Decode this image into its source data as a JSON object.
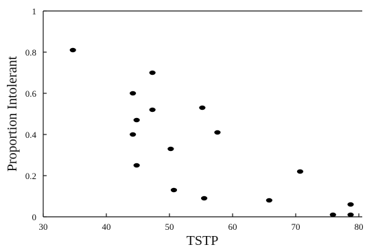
{
  "chart_data": {
    "type": "scatter",
    "title": "",
    "xlabel": "TSTP",
    "ylabel": "Proportion Intolerant",
    "xlim": [
      30,
      80
    ],
    "ylim": [
      0,
      1
    ],
    "x_ticks": [
      "30",
      "40",
      "50",
      "60",
      "70",
      "80"
    ],
    "y_ticks": [
      "0",
      "0.2",
      "0.4",
      "0.6",
      "0.8",
      "1"
    ],
    "grid": false,
    "series": [
      {
        "points": [
          {
            "x": 34.7,
            "y": 0.81
          },
          {
            "x": 44.2,
            "y": 0.6
          },
          {
            "x": 47.3,
            "y": 0.7
          },
          {
            "x": 44.8,
            "y": 0.47
          },
          {
            "x": 47.3,
            "y": 0.52
          },
          {
            "x": 44.2,
            "y": 0.4
          },
          {
            "x": 55.2,
            "y": 0.53
          },
          {
            "x": 57.6,
            "y": 0.41
          },
          {
            "x": 44.8,
            "y": 0.25
          },
          {
            "x": 50.2,
            "y": 0.33
          },
          {
            "x": 50.7,
            "y": 0.13
          },
          {
            "x": 55.5,
            "y": 0.09
          },
          {
            "x": 65.8,
            "y": 0.08
          },
          {
            "x": 70.7,
            "y": 0.22
          },
          {
            "x": 75.9,
            "y": 0.01
          },
          {
            "x": 78.7,
            "y": 0.06
          },
          {
            "x": 78.7,
            "y": 0.01
          }
        ]
      }
    ]
  }
}
